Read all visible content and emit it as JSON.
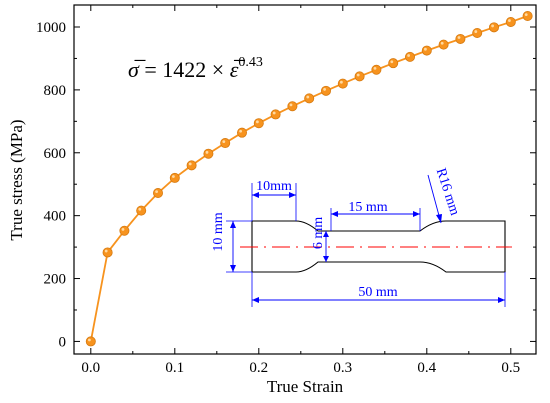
{
  "chart_data": {
    "type": "scatter",
    "xlabel": "True Strain",
    "ylabel": "True stress (MPa)",
    "xlim": [
      -0.02,
      0.53
    ],
    "ylim": [
      -40,
      1070
    ],
    "x_ticks": [
      0.0,
      0.1,
      0.2,
      0.3,
      0.4,
      0.5
    ],
    "x_tick_labels": [
      "0.0",
      "0.1",
      "0.2",
      "0.3",
      "0.4",
      "0.5"
    ],
    "y_ticks": [
      0,
      200,
      400,
      600,
      800,
      1000
    ],
    "y_tick_labels": [
      "0",
      "200",
      "400",
      "600",
      "800",
      "1000"
    ],
    "grid": false,
    "series": [
      {
        "color": "#f7931e",
        "x": [
          0.0,
          0.02,
          0.04,
          0.06,
          0.08,
          0.1,
          0.12,
          0.14,
          0.16,
          0.18,
          0.2,
          0.22,
          0.24,
          0.26,
          0.28,
          0.3,
          0.32,
          0.34,
          0.36,
          0.38,
          0.4,
          0.42,
          0.44,
          0.46,
          0.48,
          0.5,
          0.52
        ],
        "y": [
          0,
          283,
          352,
          416,
          472,
          520,
          560,
          597,
          631,
          664,
          694,
          722,
          748,
          773,
          797,
          820,
          843,
          864,
          885,
          905,
          925,
          944,
          962,
          981,
          999,
          1016,
          1035
        ]
      }
    ],
    "equation": {
      "lhs": "σ̅",
      "middle": " = 1422 × ",
      "var": "ε̅",
      "exponent": "0.43"
    }
  },
  "specimen": {
    "dimensions": {
      "grip_length": "10mm",
      "gauge_length": "15 mm",
      "radius": "R16 mm",
      "width": "10 mm",
      "gauge_width": "6 mm",
      "total_length": "50 mm"
    },
    "colors": {
      "outline": "#000000",
      "dimension": "#0000ff",
      "centerline": "#ff0000"
    }
  }
}
